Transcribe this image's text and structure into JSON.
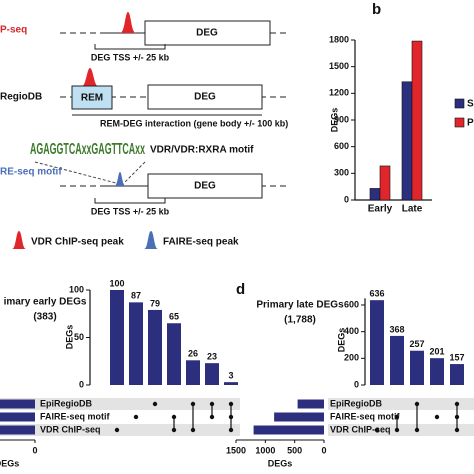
{
  "panel_a": {
    "row1_label": "P-seq",
    "row1_gene": "DEG",
    "row1_range": "DEG TSS +/- 25 kb",
    "row2_label": "RegioDB",
    "row2_element": "REM",
    "row2_gene": "DEG",
    "row2_range": "REM-DEG interaction (gene body +/- 100 kb)",
    "motif_logo": "AGAGGTCAxxGAGTTCAxx",
    "motif_label": "VDR/VDR:RXRA motif",
    "row3_label": "RE-seq motif",
    "row3_gene": "DEG",
    "row3_range": "DEG TSS +/- 25 kb",
    "legend_chip": "VDR ChIP-seq peak",
    "legend_faire": "FAIRE-seq peak"
  },
  "chart_data": [
    {
      "type": "bar",
      "panel_label": "b",
      "y_label": "DEGs",
      "categories": [
        "Early",
        "Late"
      ],
      "series": [
        {
          "name": "Secon",
          "color": "#2b2f7e",
          "values": [
            130,
            1330
          ]
        },
        {
          "name": "Primar",
          "color": "#e0262b",
          "values": [
            383,
            1788
          ]
        }
      ],
      "ylim": [
        0,
        1800
      ],
      "yticks": [
        0,
        300,
        600,
        900,
        1200,
        1500,
        1800
      ]
    },
    {
      "type": "upset",
      "title": "imary early DEGs",
      "subtitle": "(383)",
      "y_label": "DEGs",
      "color": "#2b2f7e",
      "values": [
        100,
        87,
        79,
        65,
        26,
        23,
        3
      ],
      "ylim": [
        0,
        100
      ],
      "yticks": [
        0,
        50,
        100
      ],
      "sets": [
        "EpiRegioDB",
        "FAIRE-seq motif",
        "VDR ChIP-seq"
      ],
      "set_xticks": [
        0
      ],
      "set_x_label": "DEGs"
    },
    {
      "type": "upset",
      "panel_label": "d",
      "title": "Primary late DEGs",
      "subtitle": "(1,788)",
      "y_label": "DEGs",
      "color": "#2b2f7e",
      "values": [
        636,
        368,
        257,
        201,
        157
      ],
      "ylim": [
        0,
        650
      ],
      "yticks": [
        0,
        200,
        400,
        600
      ],
      "sets": [
        "EpiRegioDB",
        "FAIRE-seq motif",
        "VDR ChIP-seq"
      ],
      "set_sizes": [
        450,
        850,
        1200
      ],
      "set_xlim": [
        0,
        1500
      ],
      "set_xticks": [
        1500,
        1000,
        500,
        0
      ],
      "set_x_label": "DEGs"
    }
  ]
}
